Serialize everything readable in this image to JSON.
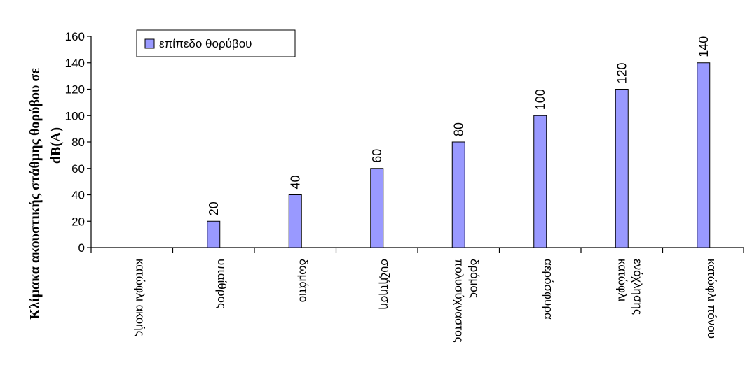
{
  "chart_data": {
    "type": "bar",
    "categories": [
      [
        "κατώφλι ακοής"
      ],
      [
        "υπαίθρος"
      ],
      [
        "δωμάτιο"
      ],
      [
        "συζήτηση"
      ],
      [
        "πολυσύχναστος",
        "δρόμος"
      ],
      [
        "αερόσφυρα"
      ],
      [
        "κατώφλι",
        "ενόχλησης"
      ],
      [
        "κατώφλι πόνου"
      ]
    ],
    "series": [
      {
        "name": "επίπεδο θορύβου",
        "values": [
          0,
          20,
          40,
          60,
          80,
          100,
          120,
          140
        ],
        "color": "#9999ff"
      }
    ],
    "data_labels": [
      "",
      "20",
      "40",
      "60",
      "80",
      "100",
      "120",
      "140"
    ],
    "ylabel": [
      "Κλίμακα ακουστικής στάθμης θορύβου σε",
      "dB(A)"
    ],
    "xlabel": "",
    "ylim": [
      0,
      160
    ],
    "yticks": [
      0,
      20,
      40,
      60,
      80,
      100,
      120,
      140,
      160
    ],
    "grid": false,
    "legend": "top-left"
  }
}
